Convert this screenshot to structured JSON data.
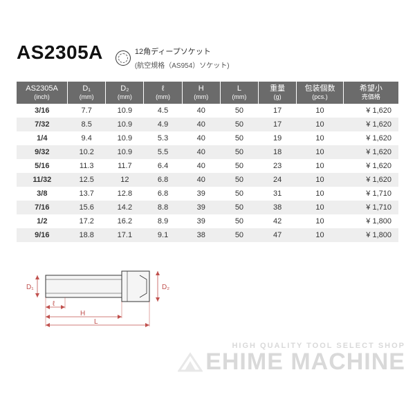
{
  "model": "AS2305A",
  "description_line1": "12角ディープソケット",
  "description_line2": "(航空規格（AS954）ソケット)",
  "table": {
    "columns": [
      {
        "label": "AS2305A",
        "unit": "(inch)"
      },
      {
        "label": "D₁",
        "unit": "(mm)"
      },
      {
        "label": "D₂",
        "unit": "(mm)"
      },
      {
        "label": "ℓ",
        "unit": "(mm)"
      },
      {
        "label": "H",
        "unit": "(mm)"
      },
      {
        "label": "L",
        "unit": "(mm)"
      },
      {
        "label": "重量",
        "unit": "(g)"
      },
      {
        "label": "包装個数",
        "unit": "(pcs.)"
      },
      {
        "label": "希望小",
        "unit": "売価格"
      }
    ],
    "rows": [
      {
        "size": "3/16",
        "d1": "7.7",
        "d2": "10.9",
        "l1": "4.5",
        "h": "40",
        "l2": "50",
        "w": "17",
        "pcs": "10",
        "price": "¥ 1,620"
      },
      {
        "size": "7/32",
        "d1": "8.5",
        "d2": "10.9",
        "l1": "4.9",
        "h": "40",
        "l2": "50",
        "w": "17",
        "pcs": "10",
        "price": "¥ 1,620"
      },
      {
        "size": "1/4",
        "d1": "9.4",
        "d2": "10.9",
        "l1": "5.3",
        "h": "40",
        "l2": "50",
        "w": "19",
        "pcs": "10",
        "price": "¥ 1,620"
      },
      {
        "size": "9/32",
        "d1": "10.2",
        "d2": "10.9",
        "l1": "5.5",
        "h": "40",
        "l2": "50",
        "w": "18",
        "pcs": "10",
        "price": "¥ 1,620"
      },
      {
        "size": "5/16",
        "d1": "11.3",
        "d2": "11.7",
        "l1": "6.4",
        "h": "40",
        "l2": "50",
        "w": "23",
        "pcs": "10",
        "price": "¥ 1,620"
      },
      {
        "size": "11/32",
        "d1": "12.5",
        "d2": "12",
        "l1": "6.8",
        "h": "40",
        "l2": "50",
        "w": "24",
        "pcs": "10",
        "price": "¥ 1,620"
      },
      {
        "size": "3/8",
        "d1": "13.7",
        "d2": "12.8",
        "l1": "6.8",
        "h": "39",
        "l2": "50",
        "w": "31",
        "pcs": "10",
        "price": "¥ 1,710"
      },
      {
        "size": "7/16",
        "d1": "15.6",
        "d2": "14.2",
        "l1": "8.8",
        "h": "39",
        "l2": "50",
        "w": "38",
        "pcs": "10",
        "price": "¥ 1,710"
      },
      {
        "size": "1/2",
        "d1": "17.2",
        "d2": "16.2",
        "l1": "8.9",
        "h": "39",
        "l2": "50",
        "w": "42",
        "pcs": "10",
        "price": "¥ 1,800"
      },
      {
        "size": "9/16",
        "d1": "18.8",
        "d2": "17.1",
        "l1": "9.1",
        "h": "38",
        "l2": "50",
        "w": "47",
        "pcs": "10",
        "price": "¥ 1,800"
      }
    ],
    "alt_row_bg": "#eeeeee",
    "header_bg": "#6b6b6b",
    "header_fg": "#ffffff",
    "body_fontsize": 11
  },
  "diagram": {
    "labels": {
      "d1": "D₁",
      "d2": "D₂",
      "l1": "ℓ",
      "h": "H",
      "l2": "L"
    },
    "stroke": "#333333",
    "annot": "#c0504d"
  },
  "watermark": {
    "small": "HIGH QUALITY TOOL SELECT SHOP",
    "big": "EHIME MACHINE",
    "color": "#d9d9d9"
  }
}
